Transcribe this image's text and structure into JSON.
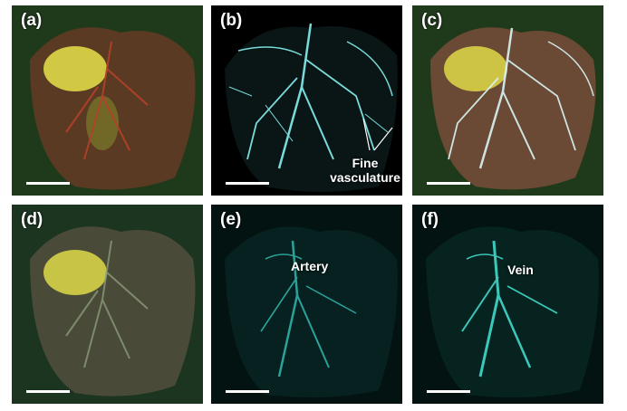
{
  "panels": [
    {
      "label": "(a)"
    },
    {
      "label": "(b)"
    },
    {
      "label": "(c)"
    },
    {
      "label": "(d)"
    },
    {
      "label": "(e)"
    },
    {
      "label": "(f)"
    }
  ],
  "annotations": {
    "b_line1": "Fine",
    "b_line2": "vasculature",
    "e": "Artery",
    "f": "Vein"
  },
  "colors": {
    "tissue_background": "#1f3a1a",
    "tissue_brown": "#5a3a22",
    "fluorescence_cyan": "#7fe6e6",
    "yellow_fat": "#e6e24a"
  }
}
